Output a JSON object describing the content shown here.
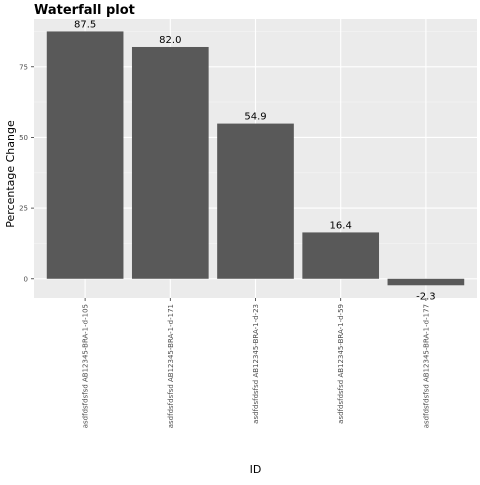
{
  "chart_data": {
    "type": "bar",
    "title": "Waterfall plot",
    "xlabel": "ID",
    "ylabel": "Percentage Change",
    "categories": [
      "asdfdsfdsfsd AB12345-BRA-1-d-105",
      "asdfdsfdsfsd AB12345-BRA-1-d-171",
      "asdfdsfdsfsd AB12345-BRA-1-d-23",
      "asdfdsfdsfsd AB12345-BRA-1-d-59",
      "asdfdsfdsfsd AB12345-BRA-1-d-177"
    ],
    "values": [
      87.5,
      82.0,
      54.9,
      16.4,
      -2.3
    ],
    "data_labels": [
      "87.5",
      "82.0",
      "54.9",
      "16.4",
      "-2.3"
    ],
    "ylim": [
      -6.8,
      91.9
    ],
    "yticks": [
      0,
      25,
      50,
      75
    ],
    "ytick_labels": [
      "0",
      "25",
      "50",
      "75"
    ],
    "grid": true,
    "colors": {
      "panel_background": "#ebebeb",
      "grid_major": "#ffffff",
      "grid_minor": "#f5f5f5",
      "bar_fill": "#595959",
      "tick_text": "#4d4d4d",
      "axis_ticks": "#333333"
    }
  }
}
